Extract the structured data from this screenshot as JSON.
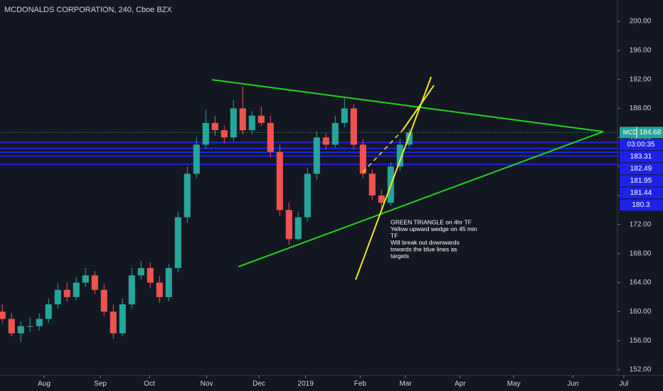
{
  "chart_data": {
    "type": "candlestick",
    "title": "MCDONALDS CORPORATION, 240, Cboe BZX",
    "categories": [
      null,
      null,
      null,
      null,
      null,
      null,
      null,
      null,
      null,
      null,
      null,
      null,
      null,
      null,
      null,
      null,
      null,
      null,
      null,
      null,
      null,
      null,
      null,
      null,
      null,
      null,
      null,
      null,
      null,
      null,
      null,
      null,
      null,
      null,
      null,
      null,
      null,
      null,
      null,
      null,
      null,
      null,
      null,
      null,
      null
    ],
    "open": [
      160,
      159,
      157,
      158,
      158,
      159,
      161,
      163,
      162,
      164,
      165,
      163,
      160,
      157,
      161,
      165,
      166,
      164,
      162,
      166,
      173,
      179,
      183,
      186,
      185,
      184,
      188,
      185,
      187,
      186,
      182,
      174,
      170,
      173,
      179,
      184,
      183,
      186,
      188,
      183,
      179,
      176,
      175,
      180,
      183
    ],
    "high": [
      161,
      159.8,
      158.6,
      159.2,
      159.8,
      161.8,
      163.9,
      164,
      164.8,
      166,
      165.6,
      163.8,
      161,
      161.8,
      166,
      167,
      166.8,
      164.9,
      166.6,
      173.8,
      180,
      184,
      187.8,
      187,
      185.6,
      189.2,
      191,
      187.6,
      188.2,
      187,
      183,
      175,
      173.8,
      179.8,
      184.8,
      184.6,
      187,
      189.4,
      188.6,
      183.8,
      179.6,
      176.8,
      180.6,
      183.8,
      185.2
    ],
    "low": [
      158.4,
      156.6,
      155.8,
      157.2,
      157.4,
      158.4,
      160.4,
      161.4,
      161.6,
      163.4,
      162.4,
      159.4,
      156.2,
      156.6,
      160.4,
      164.4,
      163.2,
      161.2,
      161.4,
      165.4,
      172.2,
      178.4,
      182.4,
      184.2,
      183.2,
      183.4,
      184.4,
      184.4,
      185.6,
      181.2,
      173.2,
      169.2,
      169.8,
      172.4,
      178.2,
      182.4,
      182.6,
      185.4,
      182.4,
      178.4,
      175.4,
      174.2,
      174.6,
      179.4,
      182.6
    ],
    "close": [
      159,
      157,
      158,
      158,
      159,
      161,
      163,
      162,
      164,
      165,
      163,
      160,
      157,
      161,
      165,
      166,
      164,
      162,
      166,
      173,
      179,
      183,
      186,
      185,
      184,
      188,
      185,
      187,
      186,
      182,
      174,
      170,
      173,
      179,
      184,
      183,
      186,
      188,
      183,
      179,
      176,
      175,
      180,
      183,
      184.68
    ],
    "up_color": "#26a69a",
    "down_color": "#ef5350",
    "xlim": [
      -0.25,
      66.67
    ],
    "xticks": [
      {
        "value": 4.52,
        "label": "Aug"
      },
      {
        "value": 10.6,
        "label": "Sep"
      },
      {
        "value": 15.9,
        "label": "Oct"
      },
      {
        "value": 22.1,
        "label": "Nov"
      },
      {
        "value": 27.75,
        "label": "Dec"
      },
      {
        "value": 32.8,
        "label": "2019"
      },
      {
        "value": 38.7,
        "label": "Feb"
      },
      {
        "value": 43.6,
        "label": "Mar"
      },
      {
        "value": 49.5,
        "label": "Apr"
      },
      {
        "value": 55.3,
        "label": "May"
      },
      {
        "value": 61.7,
        "label": "Jun"
      },
      {
        "value": 67.2,
        "label": "Jul"
      }
    ],
    "ylim": [
      152,
      200
    ],
    "yticks": [
      {
        "value": 152,
        "label": "152.00"
      },
      {
        "value": 156,
        "label": "156.00"
      },
      {
        "value": 160,
        "label": "160.00"
      },
      {
        "value": 164,
        "label": "164.00"
      },
      {
        "value": 168,
        "label": "168.00"
      },
      {
        "value": 172,
        "label": "172.00"
      },
      {
        "value": 176,
        "label": "176.00"
      },
      {
        "value": 180,
        "label": "180.00"
      },
      {
        "value": 184,
        "label": "184.00"
      },
      {
        "value": 188,
        "label": "188.00"
      },
      {
        "value": 192,
        "label": "192.00"
      },
      {
        "value": 196,
        "label": "196.00"
      },
      {
        "value": 200,
        "label": "200.00"
      }
    ],
    "last": {
      "symbol": "MCD",
      "value": 184.68,
      "countdown": "03:00:35",
      "color": "#26a69a"
    },
    "levels": {
      "color": "#1e22e8",
      "values": [
        183.31,
        182.49,
        181.95,
        181.44,
        180.3
      ]
    },
    "drawings": [
      {
        "color": "#22d31c",
        "dashed": false,
        "x": [
          22.67,
          64.98
        ],
        "y": [
          191.96,
          184.8
        ]
      },
      {
        "color": "#22d31c",
        "dashed": false,
        "x": [
          25.52,
          64.98
        ],
        "y": [
          166.18,
          184.8
        ]
      },
      {
        "color": "#f2ea1a",
        "dashed": false,
        "x": [
          38.21,
          46.37
        ],
        "y": [
          164.41,
          192.35
        ]
      },
      {
        "color": "#f2ea1a",
        "dashed": true,
        "x": [
          39.0,
          43.29
        ],
        "y": [
          179.22,
          185.0
        ]
      },
      {
        "color": "#f2ea1a",
        "dashed": false,
        "x": [
          43.29,
          46.67
        ],
        "y": [
          185.0,
          191.18
        ]
      }
    ],
    "annotation": [
      "GREEN TRIANGLE on 4hr TF",
      "Yellow upward wedge on 45 min",
      "TF",
      "Will break out downwards",
      "towards the blue lines as",
      "targets"
    ]
  }
}
